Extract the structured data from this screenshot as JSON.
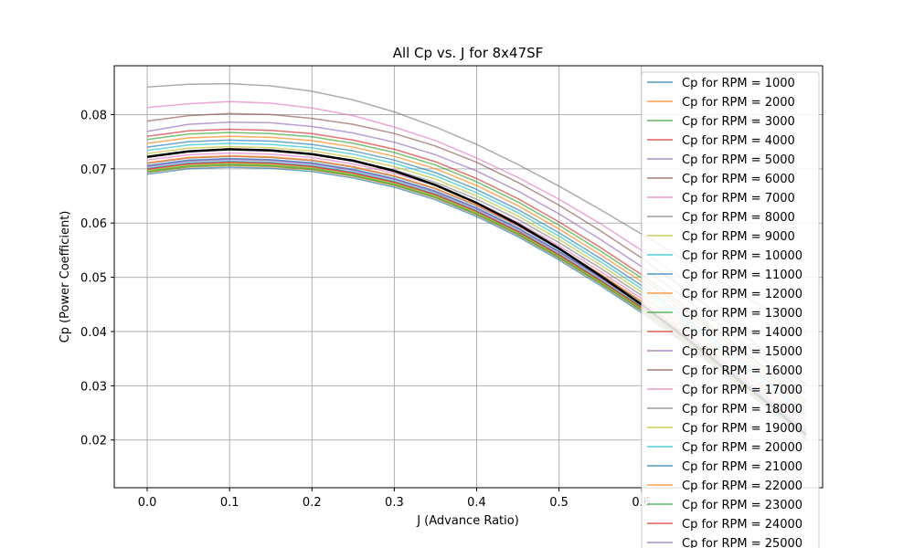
{
  "chart_data": {
    "type": "line",
    "title": "All Cp vs. J for 8x47SF",
    "xlabel": "J (Advance Ratio)",
    "ylabel": "Cp (Power Coefficient)",
    "xlim": [
      -0.04,
      0.82
    ],
    "ylim": [
      0.0112,
      0.089
    ],
    "xticks": [
      0.0,
      0.1,
      0.2,
      0.3,
      0.4,
      0.5,
      0.6
    ],
    "xtick_labels": [
      "0.0",
      "0.1",
      "0.2",
      "0.3",
      "0.4",
      "0.5",
      "0.6"
    ],
    "yticks": [
      0.02,
      0.03,
      0.04,
      0.05,
      0.06,
      0.07,
      0.08
    ],
    "ytick_labels": [
      "0.02",
      "0.03",
      "0.04",
      "0.05",
      "0.06",
      "0.07",
      "0.08"
    ],
    "grid": true,
    "legend_position": "upper-right",
    "x": [
      0.0,
      0.05,
      0.1,
      0.15,
      0.2,
      0.25,
      0.3,
      0.35,
      0.4,
      0.45,
      0.5,
      0.55,
      0.6,
      0.65,
      0.7,
      0.75,
      0.8
    ],
    "series": [
      {
        "name": "Cp for RPM = 1000",
        "color": "#1f77b4",
        "values": [
          0.069,
          0.07,
          0.0703,
          0.0701,
          0.0695,
          0.0683,
          0.0666,
          0.0643,
          0.0612,
          0.0575,
          0.0532,
          0.0485,
          0.0435,
          0.038,
          0.0322,
          0.0262,
          0.0201
        ]
      },
      {
        "name": "Cp for RPM = 2000",
        "color": "#ff7f0e",
        "values": [
          0.0693,
          0.0703,
          0.0706,
          0.0704,
          0.0698,
          0.0686,
          0.0669,
          0.0646,
          0.0615,
          0.0578,
          0.0535,
          0.0488,
          0.0438,
          0.0383,
          0.0325,
          0.0265,
          0.0204
        ]
      },
      {
        "name": "Cp for RPM = 3000",
        "color": "#2ca02c",
        "values": [
          0.0696,
          0.0706,
          0.0709,
          0.0707,
          0.0701,
          0.0689,
          0.0672,
          0.0649,
          0.0618,
          0.0581,
          0.0538,
          0.0491,
          0.0441,
          0.0386,
          0.0328,
          0.0268,
          0.0207
        ]
      },
      {
        "name": "Cp for RPM = 4000",
        "color": "#d62728",
        "values": [
          0.07,
          0.071,
          0.0713,
          0.0711,
          0.0705,
          0.0693,
          0.0676,
          0.0653,
          0.0622,
          0.0585,
          0.0542,
          0.0495,
          0.0445,
          0.039,
          0.0332,
          0.0272,
          0.0211
        ]
      },
      {
        "name": "Cp for RPM = 5000",
        "color": "#9467bd",
        "values": [
          0.0705,
          0.0715,
          0.0718,
          0.0716,
          0.071,
          0.0698,
          0.0681,
          0.0658,
          0.0627,
          0.059,
          0.0547,
          0.05,
          0.045,
          0.0395,
          0.0337,
          0.0277,
          0.0216
        ]
      },
      {
        "name": "Cp for RPM = 6000",
        "color": "#8c564b",
        "values": [
          0.071,
          0.072,
          0.0723,
          0.0721,
          0.0715,
          0.0703,
          0.0686,
          0.0663,
          0.0632,
          0.0595,
          0.0552,
          0.0505,
          0.0455,
          0.04,
          0.0342,
          0.0282,
          0.0221
        ]
      },
      {
        "name": "Cp for RPM = 7000",
        "color": "#e377c2",
        "values": [
          0.0716,
          0.0726,
          0.0729,
          0.0727,
          0.0721,
          0.0709,
          0.0692,
          0.0669,
          0.0638,
          0.0601,
          0.0558,
          0.0511,
          0.0461,
          0.0406,
          0.0348,
          0.0288,
          0.0227
        ]
      },
      {
        "name": "Cp for RPM = 8000",
        "color": "#7f7f7f",
        "values": [
          0.0722,
          0.0732,
          0.0735,
          0.0733,
          0.0727,
          0.0715,
          0.0698,
          0.0675,
          0.0644,
          0.0607,
          0.0564,
          0.0517,
          0.0467,
          0.0412,
          0.0354,
          0.0294,
          0.0233
        ]
      },
      {
        "name": "Cp for RPM = 9000",
        "color": "#bcbd22",
        "values": [
          0.0728,
          0.0738,
          0.0741,
          0.0739,
          0.0733,
          0.0721,
          0.0704,
          0.0681,
          0.065,
          0.0613,
          0.057,
          0.0523,
          0.0473,
          0.0418,
          0.036,
          0.03,
          0.0239
        ]
      },
      {
        "name": "Cp for RPM = 10000",
        "color": "#17becf",
        "values": [
          0.0734,
          0.0744,
          0.0747,
          0.0745,
          0.0739,
          0.0727,
          0.071,
          0.0687,
          0.0656,
          0.0619,
          0.0576,
          0.0529,
          0.0479,
          0.0424,
          0.0366,
          0.0306,
          0.0245
        ]
      },
      {
        "name": "Cp for RPM = 11000",
        "color": "#1f77b4",
        "values": [
          0.074,
          0.075,
          0.0753,
          0.0751,
          0.0745,
          0.0733,
          0.0716,
          0.0693,
          0.0662,
          0.0625,
          0.0582,
          0.0535,
          0.0485,
          0.043,
          0.0372,
          0.0312,
          0.0251
        ]
      },
      {
        "name": "Cp for RPM = 12000",
        "color": "#ff7f0e",
        "values": [
          0.0747,
          0.0757,
          0.076,
          0.0758,
          0.0752,
          0.074,
          0.0723,
          0.07,
          0.0669,
          0.0632,
          0.0589,
          0.0542,
          0.0492,
          0.0437,
          0.0379,
          0.0319,
          0.0258
        ]
      },
      {
        "name": "Cp for RPM = 13000",
        "color": "#2ca02c",
        "values": [
          0.0754,
          0.0764,
          0.0767,
          0.0765,
          0.0759,
          0.0747,
          0.073,
          0.0707,
          0.0676,
          0.0639,
          0.0596,
          0.0549,
          0.0499,
          0.0444,
          0.0386,
          0.0326,
          0.0265
        ]
      },
      {
        "name": "Cp for RPM = 14000",
        "color": "#d62728",
        "values": [
          0.076,
          0.077,
          0.0773,
          0.0771,
          0.0765,
          0.0753,
          0.0736,
          0.0713,
          0.0682,
          0.0645,
          0.0602,
          0.0555,
          0.0505,
          0.045,
          0.0392,
          0.0332,
          0.0271
        ]
      },
      {
        "name": "Cp for RPM = 15000",
        "color": "#9467bd",
        "values": [
          0.0769,
          0.0782,
          0.0786,
          0.0785,
          0.0778,
          0.0766,
          0.0749,
          0.0726,
          0.0696,
          0.0659,
          0.0617,
          0.057,
          0.052,
          0.0465,
          0.0407,
          0.0347,
          0.0286
        ]
      },
      {
        "name": "Cp for RPM = 16000",
        "color": "#8c564b",
        "values": [
          0.0788,
          0.0798,
          0.0802,
          0.08,
          0.0793,
          0.0782,
          0.0765,
          0.0742,
          0.0712,
          0.0675,
          0.0633,
          0.0586,
          0.0536,
          0.0481,
          0.0423,
          0.0363,
          0.0302
        ]
      },
      {
        "name": "Cp for RPM = 17000",
        "color": "#e377c2",
        "values": [
          0.0813,
          0.082,
          0.0824,
          0.0821,
          0.0812,
          0.0798,
          0.0777,
          0.0752,
          0.072,
          0.0684,
          0.0644,
          0.0599,
          0.055,
          0.0497,
          0.044,
          0.038,
          0.032
        ]
      },
      {
        "name": "Cp for RPM = 18000",
        "color": "#7f7f7f",
        "values": [
          0.0851,
          0.0856,
          0.0857,
          0.0853,
          0.0843,
          0.0827,
          0.0805,
          0.0777,
          0.0745,
          0.0708,
          0.0668,
          0.0625,
          0.058,
          0.0535,
          0.0489,
          0.0442,
          0.0395
        ]
      },
      {
        "name": "Cp for RPM = 19000",
        "color": "#bcbd22",
        "values": [
          0.0697,
          0.0707,
          0.071,
          0.0708,
          0.0702,
          0.069,
          0.0673,
          0.065,
          0.0619,
          0.0582,
          0.0539,
          0.0492,
          0.0442,
          0.0387,
          0.0329,
          0.0269,
          0.0208
        ]
      },
      {
        "name": "Cp for RPM = 20000",
        "color": "#17becf",
        "values": [
          0.0701,
          0.0711,
          0.0714,
          0.0712,
          0.0706,
          0.0694,
          0.0677,
          0.0654,
          0.0623,
          0.0586,
          0.0543,
          0.0496,
          0.0446,
          0.0391,
          0.0333,
          0.0273,
          0.0212
        ]
      },
      {
        "name": "Cp for RPM = 21000",
        "color": "#1f77b4",
        "values": [
          0.0706,
          0.0716,
          0.0719,
          0.0717,
          0.0711,
          0.0699,
          0.0682,
          0.0659,
          0.0628,
          0.0591,
          0.0548,
          0.0501,
          0.0451,
          0.0396,
          0.0338,
          0.0278,
          0.0217
        ]
      },
      {
        "name": "Cp for RPM = 22000",
        "color": "#ff7f0e",
        "values": [
          0.0711,
          0.0721,
          0.0724,
          0.0722,
          0.0716,
          0.0704,
          0.0687,
          0.0664,
          0.0633,
          0.0596,
          0.0553,
          0.0506,
          0.0456,
          0.0401,
          0.0343,
          0.0283,
          0.0222
        ]
      },
      {
        "name": "Cp for RPM = 23000",
        "color": "#2ca02c",
        "values": [
          0.0694,
          0.0704,
          0.0707,
          0.0705,
          0.0699,
          0.0687,
          0.067,
          0.0647,
          0.0616,
          0.0579,
          0.0536,
          0.0489,
          0.0439,
          0.0384,
          0.0326,
          0.0266,
          0.0205
        ]
      },
      {
        "name": "Cp for RPM = 24000",
        "color": "#d62728",
        "values": [
          0.0699,
          0.0709,
          0.0712,
          0.071,
          0.0704,
          0.0692,
          0.0675,
          0.0652,
          0.0621,
          0.0584,
          0.0541,
          0.0494,
          0.0444,
          0.0389,
          0.0331,
          0.0271,
          0.021
        ]
      },
      {
        "name": "Cp for RPM = 25000",
        "color": "#9467bd",
        "values": [
          0.0704,
          0.0714,
          0.0717,
          0.0715,
          0.0709,
          0.0697,
          0.068,
          0.0657,
          0.0626,
          0.0589,
          0.0546,
          0.0499,
          0.0449,
          0.0394,
          0.0336,
          0.0276,
          0.0215
        ]
      }
    ],
    "highlight_series": {
      "color": "#000000",
      "values": [
        0.0722,
        0.0732,
        0.0736,
        0.0734,
        0.0727,
        0.0715,
        0.0696,
        0.067,
        0.0637,
        0.0598,
        0.0553,
        0.0503,
        0.045,
        0.0393,
        0.0333,
        0.0272,
        0.021
      ]
    }
  }
}
